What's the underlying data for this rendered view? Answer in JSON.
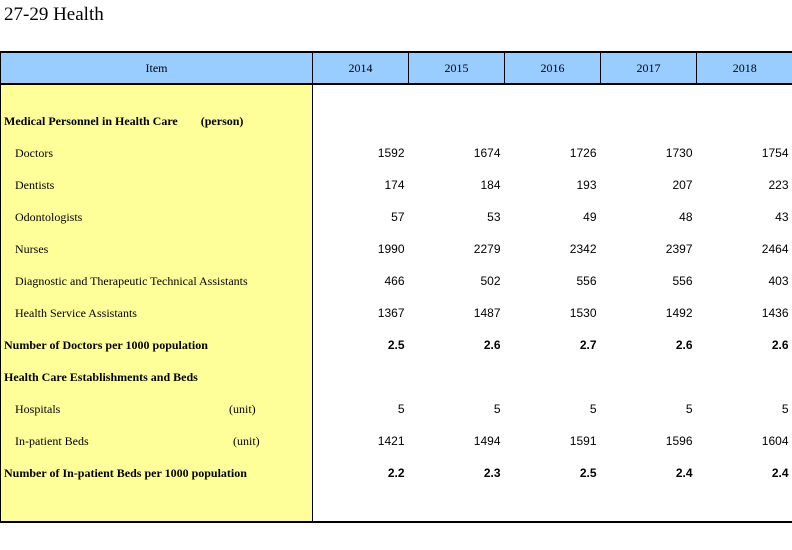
{
  "title": "27-29  Health",
  "header": {
    "item": "Item",
    "years": [
      "2014",
      "2015",
      "2016",
      "2017",
      "2018"
    ]
  },
  "rows": [
    {
      "label": "Medical Personnel in Health Care",
      "unit": "(person)"
    },
    {
      "label": "Doctors",
      "values": [
        "1592",
        "1674",
        "1726",
        "1730",
        "1754"
      ]
    },
    {
      "label": "Dentists",
      "values": [
        "174",
        "184",
        "193",
        "207",
        "223"
      ]
    },
    {
      "label": "Odontologists",
      "values": [
        "57",
        "53",
        "49",
        "48",
        "43"
      ]
    },
    {
      "label": "Nurses",
      "values": [
        "1990",
        "2279",
        "2342",
        "2397",
        "2464"
      ]
    },
    {
      "label": "Diagnostic and Therapeutic Technical Assistants",
      "values": [
        "466",
        "502",
        "556",
        "556",
        "403"
      ]
    },
    {
      "label": "Health Service Assistants",
      "values": [
        "1367",
        "1487",
        "1530",
        "1492",
        "1436"
      ]
    },
    {
      "label": "Number of Doctors per 1000 population",
      "values": [
        "2.5",
        "2.6",
        "2.7",
        "2.6",
        "2.6"
      ]
    },
    {
      "label": "Health Care Establishments and Beds"
    },
    {
      "label": "Hospitals",
      "unit": "(unit)",
      "values": [
        "5",
        "5",
        "5",
        "5",
        "5"
      ]
    },
    {
      "label": "In-patient Beds",
      "unit": "(unit)",
      "values": [
        "1421",
        "1494",
        "1591",
        "1596",
        "1604"
      ]
    },
    {
      "label": "Number of In-patient Beds per 1000 population",
      "values": [
        "2.2",
        "2.3",
        "2.5",
        "2.4",
        "2.4"
      ]
    }
  ]
}
